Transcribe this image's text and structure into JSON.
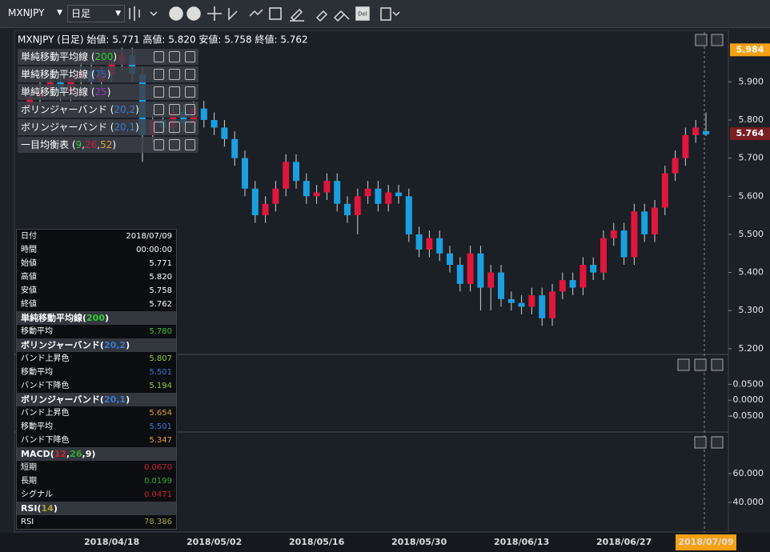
{
  "toolbar": {
    "symbol": "MXNJPY",
    "timeframe": "日足",
    "del_icon": "Del"
  },
  "header": "MXNJPY (日足) 始値: 5.771 高値: 5.820 安値: 5.758 終値: 5.762",
  "legend": [
    {
      "parts": [
        "単純移動平均線 (",
        "200",
        ")"
      ],
      "colors": [
        "#ffffff",
        "#33cc33",
        "#ffffff"
      ]
    },
    {
      "parts": [
        "単純移動平均線 (",
        "75",
        ")"
      ],
      "colors": [
        "#ffffff",
        "#3366cc",
        "#ffffff"
      ]
    },
    {
      "parts": [
        "単純移動平均線 (",
        "25",
        ")"
      ],
      "colors": [
        "#ffffff",
        "#9933cc",
        "#ffffff"
      ]
    },
    {
      "parts": [
        "ボリンジャーバンド (",
        "20,2",
        ")"
      ],
      "colors": [
        "#ffffff",
        "#3a7bd5",
        "#ffffff"
      ]
    },
    {
      "parts": [
        "ボリンジャーバンド (",
        "20,1",
        ")"
      ],
      "colors": [
        "#ffffff",
        "#3a7bd5",
        "#ffffff"
      ]
    },
    {
      "parts": [
        "一目均衡表 (",
        "9",
        ",",
        "26",
        ",",
        "52",
        ")"
      ],
      "colors": [
        "#ffffff",
        "#33cc33",
        "#ffffff",
        "#cc2233",
        "#ffffff",
        "#e6a23c",
        "#ffffff"
      ]
    }
  ],
  "data_window": [
    {
      "label": "日付",
      "value": "2018/07/09"
    },
    {
      "label": "時間",
      "value": "00:00:00"
    },
    {
      "label": "始値",
      "value": "5.771"
    },
    {
      "label": "高値",
      "value": "5.820"
    },
    {
      "label": "安値",
      "value": "5.758"
    },
    {
      "label": "終値",
      "value": "5.762"
    },
    {
      "section": [
        "単純移動平均線(",
        "200",
        ")"
      ],
      "colors": [
        "#ffffff",
        "#33cc33",
        "#ffffff"
      ]
    },
    {
      "label": "移動平均",
      "value": "5.780",
      "color": "#33cc33"
    },
    {
      "section": [
        "ボリンジャーバンド(",
        "20,2",
        ")"
      ],
      "colors": [
        "#ffffff",
        "#3a7bd5",
        "#ffffff"
      ]
    },
    {
      "label": "バンド上昇色",
      "value": "5.807",
      "color": "#99cc33"
    },
    {
      "label": "移動平均",
      "value": "5.501",
      "color": "#3a7bd5"
    },
    {
      "label": "バンド下降色",
      "value": "5.194",
      "color": "#99cc33"
    },
    {
      "section": [
        "ボリンジャーバンド(",
        "20,1",
        ")"
      ],
      "colors": [
        "#ffffff",
        "#3a7bd5",
        "#ffffff"
      ]
    },
    {
      "label": "バンド上昇色",
      "value": "5.654",
      "color": "#e6a23c"
    },
    {
      "label": "移動平均",
      "value": "5.501",
      "color": "#3a7bd5"
    },
    {
      "label": "バンド下降色",
      "value": "5.347",
      "color": "#e6a23c"
    },
    {
      "section": [
        "MACD(",
        "12",
        ",",
        "26",
        ",",
        "9",
        ")"
      ],
      "colors": [
        "#ffffff",
        "#cc2233",
        "#ffffff",
        "#33aa33",
        "#ffffff",
        "#ffffff",
        "#ffffff"
      ]
    },
    {
      "label": "短期",
      "value": "0.0670",
      "color": "#cc2233"
    },
    {
      "label": "長期",
      "value": "0.0199",
      "color": "#33aa33"
    },
    {
      "label": "シグナル",
      "value": "0.0471",
      "color": "#cc2233"
    },
    {
      "section": [
        "RSI(",
        "14",
        ")"
      ],
      "colors": [
        "#ffffff",
        "#aaa03c",
        "#ffffff"
      ]
    },
    {
      "label": "RSI",
      "value": "78.386",
      "color": "#aaa03c"
    }
  ],
  "chart_data": {
    "type": "candlestick",
    "categories": [
      null,
      null,
      null,
      null,
      null,
      null,
      null,
      null,
      "2018/04/18",
      null,
      null,
      null,
      null,
      null,
      null,
      null,
      null,
      null,
      "2018/05/02",
      null,
      null,
      null,
      null,
      null,
      null,
      null,
      null,
      null,
      "2018/05/16",
      null,
      null,
      null,
      null,
      null,
      null,
      null,
      null,
      null,
      "2018/05/30",
      null,
      null,
      null,
      null,
      null,
      null,
      null,
      null,
      null,
      "2018/06/13",
      null,
      null,
      null,
      null,
      null,
      null,
      null,
      null,
      null,
      "2018/06/27",
      null,
      null,
      null,
      null,
      null,
      null,
      null,
      "2018/07/09"
    ],
    "open": [
      5.84,
      5.86,
      5.88,
      5.9,
      5.87,
      5.91,
      5.93,
      5.9,
      5.92,
      5.95,
      5.97,
      5.92,
      5.76,
      5.8,
      5.78,
      5.82,
      5.79,
      5.83,
      5.8,
      5.78,
      5.75,
      5.7,
      5.62,
      5.55,
      5.58,
      5.62,
      5.69,
      5.64,
      5.6,
      5.61,
      5.64,
      5.58,
      5.55,
      5.6,
      5.62,
      5.58,
      5.61,
      5.6,
      5.5,
      5.46,
      5.49,
      5.45,
      5.42,
      5.37,
      5.45,
      5.36,
      5.4,
      5.33,
      5.32,
      5.31,
      5.34,
      5.28,
      5.35,
      5.38,
      5.36,
      5.42,
      5.4,
      5.49,
      5.51,
      5.44,
      5.56,
      5.5,
      5.57,
      5.66,
      5.7,
      5.76,
      5.771
    ],
    "high": [
      5.88,
      5.9,
      5.92,
      5.92,
      5.93,
      5.95,
      5.95,
      5.94,
      5.97,
      5.99,
      5.99,
      5.94,
      5.82,
      5.82,
      5.84,
      5.84,
      5.85,
      5.85,
      5.82,
      5.8,
      5.77,
      5.72,
      5.64,
      5.6,
      5.64,
      5.71,
      5.71,
      5.66,
      5.63,
      5.66,
      5.66,
      5.6,
      5.62,
      5.64,
      5.64,
      5.63,
      5.63,
      5.62,
      5.52,
      5.51,
      5.51,
      5.47,
      5.44,
      5.47,
      5.47,
      5.42,
      5.42,
      5.35,
      5.34,
      5.36,
      5.36,
      5.37,
      5.4,
      5.4,
      5.44,
      5.44,
      5.51,
      5.53,
      5.53,
      5.58,
      5.58,
      5.59,
      5.68,
      5.72,
      5.78,
      5.8,
      5.82
    ],
    "low": [
      5.82,
      5.84,
      5.86,
      5.85,
      5.85,
      5.89,
      5.88,
      5.88,
      5.9,
      5.93,
      5.9,
      5.69,
      5.74,
      5.76,
      5.76,
      5.77,
      5.77,
      5.78,
      5.76,
      5.73,
      5.68,
      5.6,
      5.53,
      5.53,
      5.56,
      5.6,
      5.62,
      5.58,
      5.58,
      5.59,
      5.56,
      5.53,
      5.5,
      5.58,
      5.56,
      5.56,
      5.58,
      5.48,
      5.44,
      5.44,
      5.43,
      5.4,
      5.35,
      5.35,
      5.3,
      5.3,
      5.31,
      5.3,
      5.29,
      5.29,
      5.26,
      5.26,
      5.33,
      5.34,
      5.34,
      5.38,
      5.38,
      5.47,
      5.42,
      5.42,
      5.48,
      5.48,
      5.55,
      5.64,
      5.68,
      5.74,
      5.758
    ],
    "close": [
      5.86,
      5.88,
      5.9,
      5.87,
      5.91,
      5.93,
      5.9,
      5.92,
      5.95,
      5.97,
      5.92,
      5.76,
      5.8,
      5.78,
      5.82,
      5.79,
      5.83,
      5.8,
      5.78,
      5.75,
      5.7,
      5.62,
      5.55,
      5.58,
      5.62,
      5.69,
      5.64,
      5.6,
      5.61,
      5.64,
      5.58,
      5.55,
      5.6,
      5.62,
      5.58,
      5.61,
      5.6,
      5.5,
      5.46,
      5.49,
      5.45,
      5.42,
      5.37,
      5.45,
      5.36,
      5.4,
      5.33,
      5.32,
      5.31,
      5.34,
      5.28,
      5.35,
      5.38,
      5.36,
      5.42,
      5.4,
      5.49,
      5.51,
      5.44,
      5.56,
      5.5,
      5.57,
      5.66,
      5.7,
      5.76,
      5.78,
      5.762
    ],
    "up_color": "#e0163c",
    "down_color": "#1a9fe0",
    "ylim": [
      5.185,
      6.035
    ],
    "yticks": [
      {
        "value": 5.2,
        "label": "5.200"
      },
      {
        "value": 5.3,
        "label": "5.300"
      },
      {
        "value": 5.4,
        "label": "5.400"
      },
      {
        "value": 5.5,
        "label": "5.500"
      },
      {
        "value": 5.6,
        "label": "5.600"
      },
      {
        "value": 5.7,
        "label": "5.700"
      },
      {
        "value": 5.8,
        "label": "5.800"
      },
      {
        "value": 5.9,
        "label": "5.900"
      }
    ],
    "price_markers": [
      {
        "value": 5.984,
        "label": "5.984",
        "color": "#f5a015"
      },
      {
        "value": 5.764,
        "label": "5.764",
        "color": "#7a1f22"
      }
    ]
  },
  "macd_pane": {
    "ylim": [
      -0.1,
      0.144
    ],
    "yticks": [
      {
        "value": 0.05,
        "label": "0.0500"
      },
      {
        "value": 0,
        "label": "0.0000"
      },
      {
        "value": -0.05,
        "label": "-0.0500"
      }
    ]
  },
  "rsi_pane": {
    "ylim": [
      19.4,
      88.9
    ],
    "yticks": [
      {
        "value": 60,
        "label": "60.000"
      },
      {
        "value": 40,
        "label": "40.000"
      }
    ]
  }
}
